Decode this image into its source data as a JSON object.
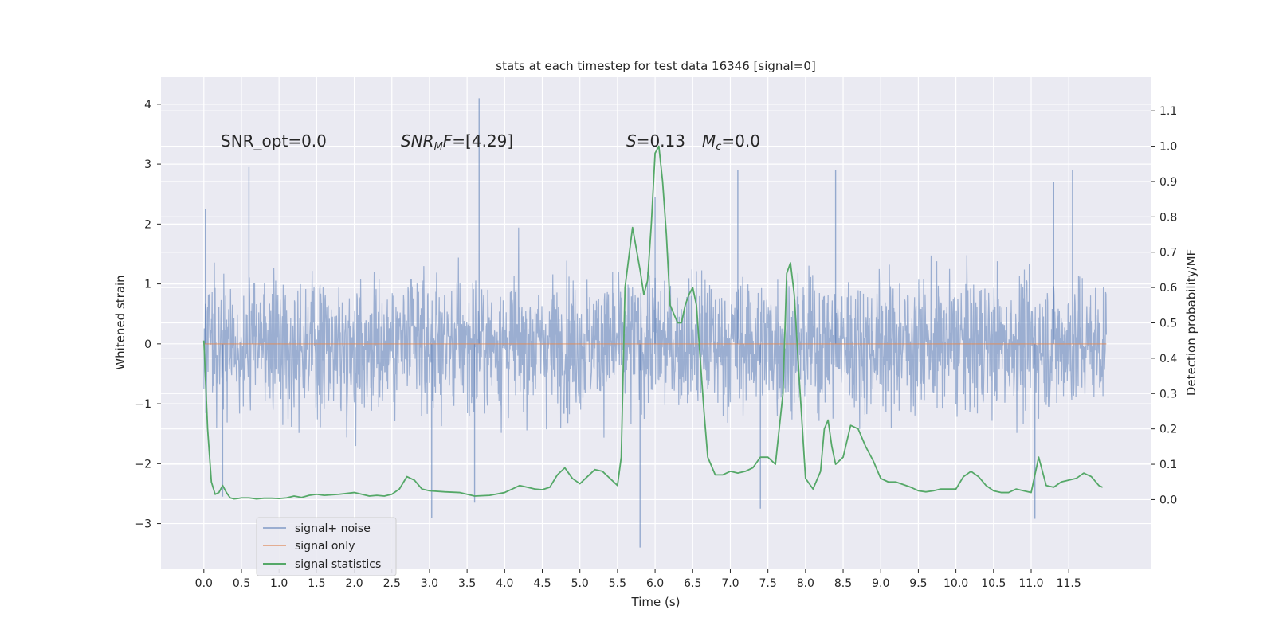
{
  "chart_data": {
    "type": "line",
    "title": "stats at each timestep for test data 16346 [signal=0]",
    "xlabel": "Time (s)",
    "ylabel": "Whitened strain",
    "y2label": "Detection probability/MF",
    "xlim": [
      -0.57,
      12.6
    ],
    "ylim": [
      -3.75,
      4.45
    ],
    "y2lim": [
      -0.195,
      1.195
    ],
    "xticks": [
      "0.0",
      "0.5",
      "1.0",
      "1.5",
      "2.0",
      "2.5",
      "3.0",
      "3.5",
      "4.0",
      "4.5",
      "5.0",
      "5.5",
      "6.0",
      "6.5",
      "7.0",
      "7.5",
      "8.0",
      "8.5",
      "9.0",
      "9.5",
      "10.0",
      "10.5",
      "11.0",
      "11.5"
    ],
    "yticks": [
      "−3",
      "−2",
      "−1",
      "0",
      "1",
      "2",
      "3",
      "4"
    ],
    "y2ticks": [
      "0.0",
      "0.1",
      "0.2",
      "0.3",
      "0.4",
      "0.5",
      "0.6",
      "0.7",
      "0.8",
      "0.9",
      "1.0",
      "1.1"
    ],
    "grid": true,
    "background": "#eaeaf2",
    "legend": {
      "position": "lower-left",
      "entries": [
        {
          "label": "signal+ noise",
          "color": "#4c72b0"
        },
        {
          "label": "signal only",
          "color": "#dd8452"
        },
        {
          "label": "signal statistics",
          "color": "#55a868"
        }
      ]
    },
    "annotations": [
      {
        "id": "snr_opt",
        "text": "SNR_opt=0.0"
      },
      {
        "id": "snr_mf",
        "text": "SNR",
        "sub": "M",
        "rest": "F=[4.29]"
      },
      {
        "id": "s_val",
        "text": "S",
        "rest": "=0.13"
      },
      {
        "id": "mc_val",
        "text": "M",
        "sub": "c",
        "rest": "=0.0"
      }
    ],
    "series": [
      {
        "name": "signal+ noise",
        "color": "#4c72b0",
        "x_range": [
          0.0,
          12.0
        ],
        "typical_amplitude": 1.35,
        "visible_spikes": [
          {
            "x": 0.02,
            "y": 2.25
          },
          {
            "x": 0.25,
            "y": -2.55
          },
          {
            "x": 0.6,
            "y": 2.95
          },
          {
            "x": 3.66,
            "y": 4.1
          },
          {
            "x": 3.03,
            "y": -2.9
          },
          {
            "x": 3.6,
            "y": -2.65
          },
          {
            "x": 6.0,
            "y": 2.45
          },
          {
            "x": 5.8,
            "y": -3.4
          },
          {
            "x": 7.1,
            "y": 2.9
          },
          {
            "x": 7.4,
            "y": -2.75
          },
          {
            "x": 8.4,
            "y": 2.9
          },
          {
            "x": 11.05,
            "y": -2.92
          },
          {
            "x": 11.3,
            "y": 2.7
          },
          {
            "x": 11.55,
            "y": 2.9
          }
        ]
      },
      {
        "name": "signal only",
        "color": "#dd8452",
        "x": [
          0.0,
          12.0
        ],
        "y": [
          0.0,
          0.0
        ]
      },
      {
        "name": "signal statistics",
        "color": "#55a868",
        "axis": "right",
        "x": [
          0.0,
          0.05,
          0.1,
          0.15,
          0.2,
          0.25,
          0.3,
          0.35,
          0.4,
          0.45,
          0.5,
          0.6,
          0.7,
          0.8,
          0.9,
          1.0,
          1.1,
          1.2,
          1.3,
          1.4,
          1.5,
          1.6,
          1.8,
          2.0,
          2.1,
          2.2,
          2.3,
          2.4,
          2.5,
          2.6,
          2.7,
          2.8,
          2.9,
          3.0,
          3.2,
          3.4,
          3.6,
          3.8,
          4.0,
          4.1,
          4.2,
          4.3,
          4.4,
          4.5,
          4.6,
          4.7,
          4.8,
          4.9,
          5.0,
          5.1,
          5.2,
          5.3,
          5.4,
          5.5,
          5.55,
          5.6,
          5.7,
          5.8,
          5.85,
          5.9,
          5.95,
          6.0,
          6.05,
          6.1,
          6.15,
          6.2,
          6.3,
          6.35,
          6.4,
          6.45,
          6.5,
          6.55,
          6.6,
          6.65,
          6.7,
          6.8,
          6.9,
          7.0,
          7.1,
          7.2,
          7.3,
          7.4,
          7.5,
          7.6,
          7.7,
          7.75,
          7.8,
          7.85,
          7.9,
          8.0,
          8.1,
          8.2,
          8.25,
          8.3,
          8.35,
          8.4,
          8.5,
          8.6,
          8.7,
          8.8,
          8.9,
          9.0,
          9.1,
          9.2,
          9.4,
          9.5,
          9.6,
          9.7,
          9.8,
          9.9,
          10.0,
          10.1,
          10.2,
          10.3,
          10.4,
          10.5,
          10.6,
          10.7,
          10.8,
          10.9,
          11.0,
          11.1,
          11.2,
          11.3,
          11.4,
          11.5,
          11.6,
          11.7,
          11.8,
          11.9,
          11.95
        ],
        "y": [
          0.45,
          0.2,
          0.05,
          0.015,
          0.02,
          0.04,
          0.02,
          0.005,
          0.002,
          0.003,
          0.005,
          0.005,
          0.002,
          0.004,
          0.004,
          0.003,
          0.005,
          0.01,
          0.006,
          0.012,
          0.015,
          0.012,
          0.015,
          0.02,
          0.015,
          0.01,
          0.012,
          0.01,
          0.015,
          0.03,
          0.065,
          0.055,
          0.03,
          0.025,
          0.022,
          0.02,
          0.01,
          0.012,
          0.02,
          0.03,
          0.04,
          0.035,
          0.03,
          0.028,
          0.035,
          0.07,
          0.09,
          0.06,
          0.045,
          0.065,
          0.085,
          0.08,
          0.06,
          0.04,
          0.12,
          0.6,
          0.77,
          0.65,
          0.58,
          0.62,
          0.78,
          0.98,
          1.0,
          0.9,
          0.75,
          0.55,
          0.5,
          0.5,
          0.55,
          0.58,
          0.6,
          0.55,
          0.4,
          0.25,
          0.12,
          0.07,
          0.07,
          0.08,
          0.075,
          0.08,
          0.09,
          0.12,
          0.12,
          0.1,
          0.3,
          0.64,
          0.67,
          0.58,
          0.4,
          0.06,
          0.03,
          0.08,
          0.2,
          0.225,
          0.15,
          0.1,
          0.12,
          0.21,
          0.2,
          0.15,
          0.11,
          0.06,
          0.05,
          0.05,
          0.035,
          0.025,
          0.022,
          0.025,
          0.03,
          0.03,
          0.03,
          0.065,
          0.08,
          0.065,
          0.04,
          0.025,
          0.02,
          0.02,
          0.03,
          0.025,
          0.02,
          0.12,
          0.04,
          0.035,
          0.05,
          0.055,
          0.06,
          0.075,
          0.065,
          0.04,
          0.035
        ]
      }
    ]
  }
}
